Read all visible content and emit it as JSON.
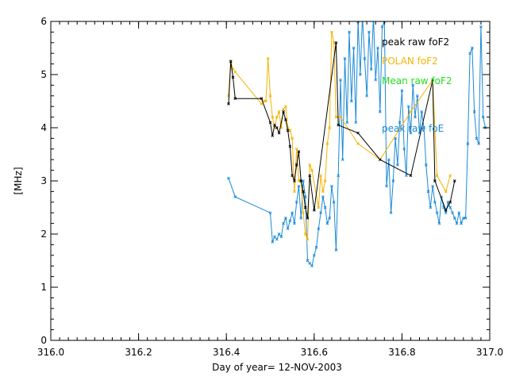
{
  "chart_data": {
    "type": "line",
    "title": "",
    "xlabel": "Day of year= 12-NOV-2003",
    "ylabel": "[MHz]",
    "xlim": [
      316.0,
      317.0
    ],
    "ylim": [
      0,
      6
    ],
    "grid": false,
    "legend_position": "top-right",
    "x_ticks": [
      316.0,
      316.2,
      316.4,
      316.6,
      316.8,
      317.0
    ],
    "x_tick_labels": [
      "316.0",
      "316.2",
      "316.4",
      "316.6",
      "316.8",
      "317.0"
    ],
    "y_ticks": [
      0,
      1,
      2,
      3,
      4,
      5,
      6
    ],
    "y_tick_labels": [
      "0",
      "1",
      "2",
      "3",
      "4",
      "5",
      "6"
    ],
    "series": [
      {
        "name": "peak raw foE",
        "color": "#1a8ad6",
        "points": [
          [
            316.405,
            3.05
          ],
          [
            316.42,
            2.7
          ],
          [
            316.5,
            2.4
          ],
          [
            316.505,
            1.85
          ],
          [
            316.51,
            1.95
          ],
          [
            316.515,
            1.9
          ],
          [
            316.52,
            2.0
          ],
          [
            316.525,
            1.95
          ],
          [
            316.53,
            2.2
          ],
          [
            316.535,
            2.3
          ],
          [
            316.54,
            2.1
          ],
          [
            316.545,
            2.25
          ],
          [
            316.55,
            2.4
          ],
          [
            316.555,
            2.2
          ],
          [
            316.56,
            2.6
          ],
          [
            316.565,
            2.9
          ],
          [
            316.57,
            2.3
          ],
          [
            316.575,
            3.0
          ],
          [
            316.58,
            2.7
          ],
          [
            316.585,
            1.5
          ],
          [
            316.59,
            1.45
          ],
          [
            316.595,
            1.4
          ],
          [
            316.6,
            1.6
          ],
          [
            316.605,
            1.75
          ],
          [
            316.61,
            2.1
          ],
          [
            316.615,
            2.4
          ],
          [
            316.62,
            2.7
          ],
          [
            316.625,
            2.5
          ],
          [
            316.63,
            2.2
          ],
          [
            316.635,
            2.3
          ],
          [
            316.64,
            2.9
          ],
          [
            316.645,
            2.6
          ],
          [
            316.65,
            1.7
          ],
          [
            316.655,
            3.1
          ],
          [
            316.66,
            4.9
          ],
          [
            316.665,
            3.4
          ],
          [
            316.67,
            5.3
          ],
          [
            316.675,
            4.1
          ],
          [
            316.68,
            5.8
          ],
          [
            316.685,
            4.5
          ],
          [
            316.69,
            5.5
          ],
          [
            316.695,
            4.1
          ],
          [
            316.7,
            6.0
          ],
          [
            316.705,
            5.0
          ],
          [
            316.71,
            6.1
          ],
          [
            316.715,
            5.3
          ],
          [
            316.72,
            4.6
          ],
          [
            316.725,
            5.8
          ],
          [
            316.73,
            5.1
          ],
          [
            316.735,
            6.1
          ],
          [
            316.74,
            4.9
          ],
          [
            316.745,
            5.5
          ],
          [
            316.75,
            4.3
          ],
          [
            316.755,
            5.9
          ],
          [
            316.76,
            6.0
          ],
          [
            316.765,
            2.9
          ],
          [
            316.77,
            3.4
          ],
          [
            316.775,
            2.4
          ],
          [
            316.78,
            3.0
          ],
          [
            316.785,
            3.8
          ],
          [
            316.79,
            3.3
          ],
          [
            316.795,
            4.1
          ],
          [
            316.8,
            4.7
          ],
          [
            316.805,
            3.6
          ],
          [
            316.81,
            3.1
          ],
          [
            316.815,
            4.4
          ],
          [
            316.82,
            3.9
          ],
          [
            316.825,
            4.8
          ],
          [
            316.83,
            4.2
          ],
          [
            316.835,
            4.6
          ],
          [
            316.84,
            3.9
          ],
          [
            316.845,
            4.3
          ],
          [
            316.85,
            4.0
          ],
          [
            316.855,
            3.3
          ],
          [
            316.86,
            2.8
          ],
          [
            316.865,
            2.5
          ],
          [
            316.87,
            2.9
          ],
          [
            316.875,
            2.6
          ],
          [
            316.88,
            2.4
          ],
          [
            316.885,
            2.2
          ],
          [
            316.89,
            2.7
          ],
          [
            316.895,
            2.5
          ],
          [
            316.9,
            2.4
          ],
          [
            316.905,
            2.6
          ],
          [
            316.91,
            2.5
          ],
          [
            316.915,
            2.4
          ],
          [
            316.92,
            2.3
          ],
          [
            316.925,
            2.2
          ],
          [
            316.93,
            2.4
          ],
          [
            316.935,
            2.2
          ],
          [
            316.94,
            2.3
          ],
          [
            316.945,
            2.3
          ],
          [
            316.95,
            3.7
          ],
          [
            316.955,
            5.4
          ],
          [
            316.96,
            5.5
          ],
          [
            316.965,
            4.3
          ],
          [
            316.97,
            3.8
          ],
          [
            316.975,
            3.7
          ],
          [
            316.98,
            5.9
          ],
          [
            316.985,
            4.2
          ],
          [
            316.99,
            4.0
          ]
        ]
      },
      {
        "name": "POLAN foF2",
        "color": "#f5b400",
        "points": [
          [
            316.405,
            4.6
          ],
          [
            316.41,
            5.25
          ],
          [
            316.415,
            5.1
          ],
          [
            316.42,
            5.05
          ],
          [
            316.48,
            4.45
          ],
          [
            316.485,
            4.5
          ],
          [
            316.49,
            4.5
          ],
          [
            316.495,
            5.3
          ],
          [
            316.5,
            4.6
          ],
          [
            316.505,
            4.2
          ],
          [
            316.51,
            4.0
          ],
          [
            316.515,
            4.2
          ],
          [
            316.52,
            4.3
          ],
          [
            316.525,
            4.0
          ],
          [
            316.53,
            4.35
          ],
          [
            316.535,
            4.4
          ],
          [
            316.54,
            4.0
          ],
          [
            316.545,
            3.95
          ],
          [
            316.55,
            3.8
          ],
          [
            316.555,
            2.8
          ],
          [
            316.56,
            3.6
          ],
          [
            316.565,
            3.0
          ],
          [
            316.57,
            3.0
          ],
          [
            316.575,
            2.4
          ],
          [
            316.58,
            2.0
          ],
          [
            316.585,
            1.9
          ],
          [
            316.59,
            3.3
          ],
          [
            316.595,
            3.2
          ],
          [
            316.61,
            2.5
          ],
          [
            316.615,
            3.1
          ],
          [
            316.62,
            2.8
          ],
          [
            316.625,
            3.0
          ],
          [
            316.63,
            3.7
          ],
          [
            316.635,
            4.0
          ],
          [
            316.64,
            5.8
          ],
          [
            316.645,
            5.6
          ],
          [
            316.65,
            4.2
          ],
          [
            316.66,
            4.2
          ],
          [
            316.7,
            3.7
          ],
          [
            316.75,
            3.4
          ],
          [
            316.82,
            4.3
          ],
          [
            316.87,
            4.9
          ],
          [
            316.88,
            3.1
          ],
          [
            316.9,
            2.8
          ],
          [
            316.91,
            3.1
          ]
        ]
      },
      {
        "name": "Mean raw foF2",
        "color": "#22dd22",
        "points": []
      },
      {
        "name": "peak raw foF2",
        "color": "#000000",
        "points": [
          [
            316.405,
            4.45
          ],
          [
            316.41,
            5.25
          ],
          [
            316.415,
            4.95
          ],
          [
            316.42,
            4.55
          ],
          [
            316.48,
            4.55
          ],
          [
            316.5,
            4.1
          ],
          [
            316.505,
            3.85
          ],
          [
            316.51,
            4.05
          ],
          [
            316.515,
            4.0
          ],
          [
            316.52,
            3.9
          ],
          [
            316.53,
            4.3
          ],
          [
            316.535,
            4.15
          ],
          [
            316.54,
            3.95
          ],
          [
            316.545,
            3.65
          ],
          [
            316.55,
            3.1
          ],
          [
            316.555,
            3.0
          ],
          [
            316.56,
            3.3
          ],
          [
            316.565,
            3.55
          ],
          [
            316.57,
            3.0
          ],
          [
            316.575,
            2.8
          ],
          [
            316.58,
            2.5
          ],
          [
            316.585,
            2.3
          ],
          [
            316.59,
            3.1
          ],
          [
            316.6,
            2.45
          ],
          [
            316.65,
            5.6
          ],
          [
            316.655,
            4.05
          ],
          [
            316.7,
            3.9
          ],
          [
            316.75,
            3.4
          ],
          [
            316.82,
            3.1
          ],
          [
            316.87,
            4.9
          ],
          [
            316.875,
            3.0
          ],
          [
            316.9,
            2.45
          ],
          [
            316.91,
            2.6
          ],
          [
            316.92,
            3.0
          ]
        ]
      }
    ],
    "legend": [
      {
        "label": "peak raw foF2",
        "color": "#000000"
      },
      {
        "label": "POLAN foF2",
        "color": "#f5b400"
      },
      {
        "label": "Mean raw foF2",
        "color": "#22dd22"
      },
      {
        "label": "peak raw foE",
        "color": "#1a8ad6"
      }
    ]
  }
}
